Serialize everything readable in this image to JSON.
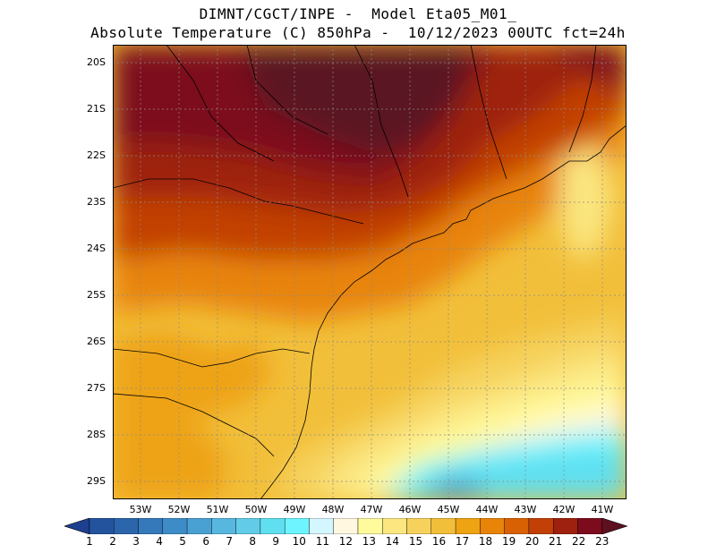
{
  "title": {
    "line1": "DIMNT/CGCT/INPE -  Model Eta05_M01_",
    "line2": "Absolute Temperature (C) 850hPa -  10/12/2023 00UTC fct=24h"
  },
  "map": {
    "lat_labels": [
      "20S",
      "21S",
      "22S",
      "23S",
      "24S",
      "25S",
      "26S",
      "27S",
      "28S",
      "29S"
    ],
    "lon_labels": [
      "53W",
      "52W",
      "51W",
      "50W",
      "49W",
      "48W",
      "47W",
      "46W",
      "45W",
      "44W",
      "43W",
      "42W",
      "41W"
    ],
    "lon_range": [
      -53.7,
      -40.4
    ],
    "lat_range": [
      -29.4,
      -19.8
    ]
  },
  "colorbar": {
    "labels": [
      "1",
      "2",
      "3",
      "4",
      "5",
      "6",
      "7",
      "8",
      "9",
      "10",
      "11",
      "12",
      "13",
      "14",
      "15",
      "16",
      "17",
      "18",
      "19",
      "20",
      "21",
      "22",
      "23"
    ],
    "colors": [
      "#1d3f8f",
      "#24539e",
      "#2b66ad",
      "#3579bb",
      "#3e8cc7",
      "#49a1d3",
      "#57b7df",
      "#62cce8",
      "#5fdff0",
      "#6df4ff",
      "#d4f6ff",
      "#fff7e0",
      "#fffa9c",
      "#fbe680",
      "#f6d25c",
      "#f2bf3a",
      "#eea313",
      "#e88408",
      "#d86104",
      "#c24006",
      "#9e200e",
      "#7d0b1e",
      "#5c1020"
    ]
  }
}
